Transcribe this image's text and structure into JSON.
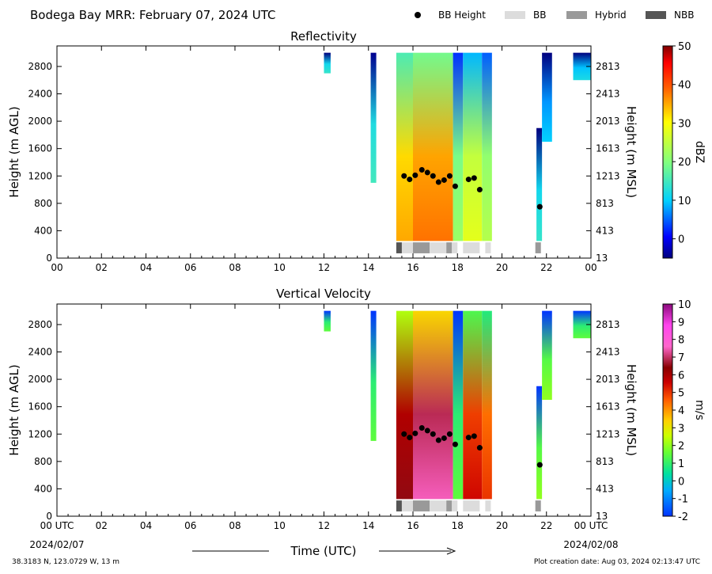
{
  "header": {
    "title": "Bodega Bay MRR:  February 07, 2024 UTC",
    "legend": [
      {
        "label": "BB Height",
        "kind": "dot",
        "color": "#000000"
      },
      {
        "label": "BB",
        "kind": "swatch",
        "color": "#dcdcdc"
      },
      {
        "label": "Hybrid",
        "kind": "swatch",
        "color": "#999999"
      },
      {
        "label": "NBB",
        "kind": "swatch",
        "color": "#555555"
      }
    ]
  },
  "footer": {
    "coords": "38.3183 N, 123.0729 W, 13 m",
    "created": "Plot creation date: Aug 03, 2024 02:13:47 UTC",
    "time_label": "Time (UTC)",
    "start_date": "2024/02/07",
    "end_date": "2024/02/08",
    "utc_suffix": " UTC"
  },
  "chart_data": [
    {
      "type": "heatmap",
      "title": "Reflectivity",
      "ylabel": "Height (m AGL)",
      "ylabel_right": "Height (m MSL)",
      "colorbar_label": "dBZ",
      "xlim": [
        0,
        24
      ],
      "ylim": [
        0,
        3100
      ],
      "x_ticks": [
        "00",
        "02",
        "04",
        "06",
        "08",
        "10",
        "12",
        "14",
        "16",
        "18",
        "20",
        "22",
        "00"
      ],
      "y_ticks": [
        0,
        400,
        800,
        1200,
        1600,
        2000,
        2400,
        2800
      ],
      "y_ticks_right": [
        "13",
        "413",
        "813",
        "1213",
        "1613",
        "2013",
        "2413",
        "2813"
      ],
      "colorbar": {
        "min": -5,
        "max": 50,
        "ticks": [
          0,
          10,
          20,
          30,
          40,
          50
        ]
      }
    },
    {
      "type": "heatmap",
      "title": "Vertical Velocity",
      "ylabel": "Height (m AGL)",
      "ylabel_right": "Height (m MSL)",
      "colorbar_label": "m/s",
      "xlim": [
        0,
        24
      ],
      "ylim": [
        0,
        3100
      ],
      "x_ticks": [
        "00 UTC",
        "02",
        "04",
        "06",
        "08",
        "10",
        "12",
        "14",
        "16",
        "18",
        "20",
        "22",
        "00 UTC"
      ],
      "y_ticks": [
        0,
        400,
        800,
        1200,
        1600,
        2000,
        2400,
        2800
      ],
      "y_ticks_right": [
        "13",
        "413",
        "813",
        "1213",
        "1613",
        "2013",
        "2413",
        "2813"
      ],
      "colorbar": {
        "min": -2,
        "max": 10,
        "ticks": [
          -2,
          -1,
          0,
          1,
          2,
          3,
          4,
          5,
          6,
          7,
          8,
          9,
          10
        ]
      }
    }
  ],
  "bb_height_points": [
    {
      "x": 15.6,
      "y": 1200
    },
    {
      "x": 15.85,
      "y": 1150
    },
    {
      "x": 16.1,
      "y": 1210
    },
    {
      "x": 16.4,
      "y": 1290
    },
    {
      "x": 16.65,
      "y": 1250
    },
    {
      "x": 16.9,
      "y": 1200
    },
    {
      "x": 17.15,
      "y": 1110
    },
    {
      "x": 17.4,
      "y": 1140
    },
    {
      "x": 17.65,
      "y": 1200
    },
    {
      "x": 17.9,
      "y": 1050
    },
    {
      "x": 18.5,
      "y": 1150
    },
    {
      "x": 18.75,
      "y": 1170
    },
    {
      "x": 19.0,
      "y": 1000
    },
    {
      "x": 21.7,
      "y": 750
    }
  ],
  "bb_segments": [
    {
      "start": 15.25,
      "end": 15.5,
      "type": "NBB"
    },
    {
      "start": 15.5,
      "end": 16.0,
      "type": "BB"
    },
    {
      "start": 16.0,
      "end": 16.75,
      "type": "Hybrid"
    },
    {
      "start": 16.75,
      "end": 17.5,
      "type": "BB"
    },
    {
      "start": 17.5,
      "end": 17.75,
      "type": "Hybrid"
    },
    {
      "start": 17.75,
      "end": 18.0,
      "type": "BB"
    },
    {
      "start": 18.25,
      "end": 19.0,
      "type": "BB"
    },
    {
      "start": 19.25,
      "end": 19.5,
      "type": "BB"
    },
    {
      "start": 21.5,
      "end": 21.75,
      "type": "Hybrid"
    }
  ],
  "echo_regions": [
    {
      "start": 12.0,
      "end": 12.3,
      "bottom": 2700,
      "top": 3000,
      "refl": 14,
      "vv": 1.5
    },
    {
      "start": 14.1,
      "end": 14.35,
      "bottom": 1100,
      "top": 3000,
      "refl": 15,
      "vv": 1.5
    },
    {
      "start": 15.25,
      "end": 16.0,
      "bottom": 250,
      "top": 3000,
      "refl": 35,
      "vv": 6.5
    },
    {
      "start": 16.0,
      "end": 17.8,
      "bottom": 250,
      "top": 3000,
      "refl": 38,
      "vv": 7.5
    },
    {
      "start": 17.8,
      "end": 18.25,
      "bottom": 250,
      "top": 3000,
      "refl": 22,
      "vv": 1.5
    },
    {
      "start": 18.25,
      "end": 19.1,
      "bottom": 250,
      "top": 3000,
      "refl": 28,
      "vv": 5.5
    },
    {
      "start": 19.1,
      "end": 19.55,
      "bottom": 250,
      "top": 3000,
      "refl": 24,
      "vv": 5
    },
    {
      "start": 21.55,
      "end": 21.8,
      "bottom": 250,
      "top": 1900,
      "refl": 14,
      "vv": 2
    },
    {
      "start": 21.8,
      "end": 22.25,
      "bottom": 1700,
      "top": 3000,
      "refl": 10,
      "vv": 2
    },
    {
      "start": 23.2,
      "end": 24.0,
      "bottom": 2600,
      "top": 3000,
      "refl": 12,
      "vv": 1.5
    }
  ]
}
